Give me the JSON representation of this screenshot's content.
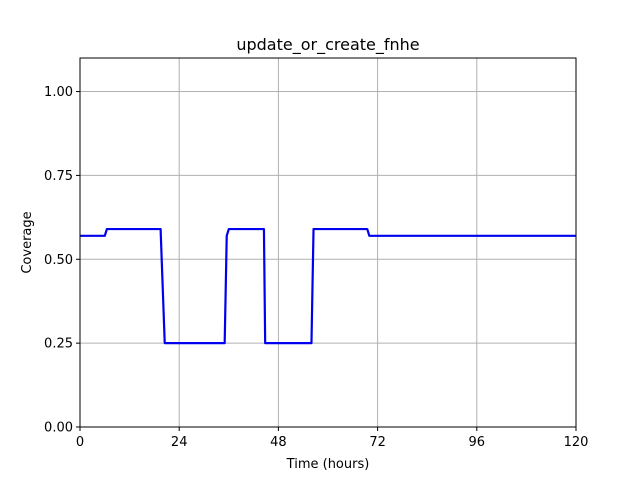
{
  "chart_data": {
    "type": "line",
    "title": "update_or_create_fnhe",
    "xlabel": "Time (hours)",
    "ylabel": "Coverage",
    "xlim": [
      0,
      120
    ],
    "ylim": [
      0.0,
      1.1
    ],
    "xticks": [
      0,
      24,
      48,
      72,
      96,
      120
    ],
    "xtick_labels": [
      "0",
      "24",
      "48",
      "72",
      "96",
      "120"
    ],
    "yticks": [
      0.0,
      0.25,
      0.5,
      0.75,
      1.0
    ],
    "ytick_labels": [
      "0.00",
      "0.25",
      "0.50",
      "0.75",
      "1.00"
    ],
    "grid": true,
    "series": [
      {
        "color": "#0000ee",
        "x": [
          0,
          6,
          6.5,
          19.5,
          20.5,
          35,
          35.5,
          36,
          44.5,
          44.8,
          56,
          56.5,
          69.5,
          70,
          120
        ],
        "y": [
          0.57,
          0.57,
          0.59,
          0.59,
          0.25,
          0.25,
          0.57,
          0.59,
          0.59,
          0.25,
          0.25,
          0.59,
          0.59,
          0.57,
          0.57
        ]
      }
    ]
  }
}
